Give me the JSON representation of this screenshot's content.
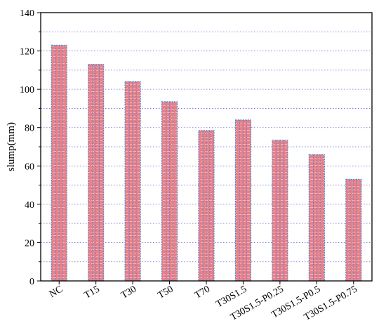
{
  "chart_data": {
    "type": "bar",
    "title": "",
    "xlabel": "",
    "ylabel": "slump(mm)",
    "ylim": [
      0,
      140
    ],
    "yticks": [
      0,
      20,
      40,
      60,
      80,
      100,
      120,
      140
    ],
    "categories": [
      "NC",
      "T15",
      "T30",
      "T50",
      "T70",
      "T30S1.5",
      "T30S1.5-P0.25",
      "T30S1.5-P0.5",
      "T30S1.5-P0.75"
    ],
    "values": [
      123,
      113,
      104,
      93.5,
      78.5,
      84,
      73.5,
      66,
      53
    ],
    "grid": "horizontal dotted, every 10",
    "bar_fill_color": "#e8808a",
    "bar_stripe_color": "#4a86c8",
    "grid_color": "#6a6ae0"
  }
}
